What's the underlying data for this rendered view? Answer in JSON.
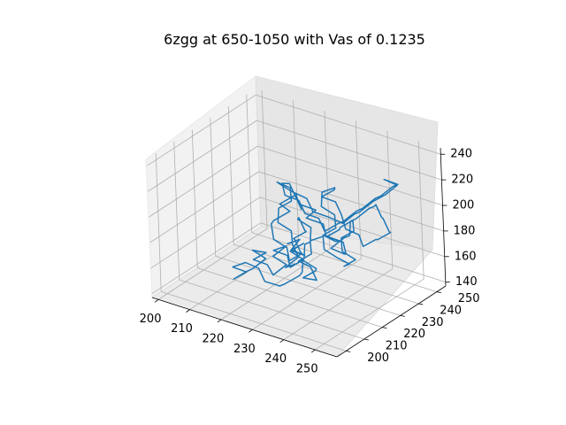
{
  "chart_data": {
    "type": "line",
    "projection": "3d",
    "title": "6zgg at 650-1050 with Vas of 0.1235",
    "xlabel": "",
    "ylabel": "",
    "zlabel": "",
    "xlim": [
      198,
      257
    ],
    "ylim": [
      195,
      255
    ],
    "zlim": [
      137,
      245
    ],
    "x_ticks": [
      "200",
      "210",
      "220",
      "230",
      "240",
      "250"
    ],
    "y_ticks": [
      "200",
      "210",
      "220",
      "230",
      "240",
      "250"
    ],
    "z_ticks": [
      "140",
      "160",
      "180",
      "200",
      "220",
      "240"
    ],
    "grid": true,
    "series": [
      {
        "color": "#1f77b4",
        "x": [
          226,
          229,
          228,
          231,
          229,
          232,
          230,
          233,
          231,
          229,
          227,
          230,
          228,
          231,
          229,
          226,
          224,
          227,
          225,
          228,
          226,
          223,
          221,
          224,
          222,
          225,
          228,
          231,
          234,
          237,
          240,
          242,
          240,
          243,
          241,
          238,
          240,
          237,
          235,
          238,
          236,
          239,
          241,
          244,
          246,
          243,
          245,
          242,
          240,
          243,
          241,
          238,
          236,
          233,
          235,
          232,
          230,
          233,
          231,
          228,
          226,
          229,
          227,
          224,
          226,
          229,
          232,
          235,
          238,
          241,
          244,
          247,
          249,
          246,
          248,
          245,
          247,
          244,
          242,
          239,
          241,
          238,
          236,
          239,
          242,
          240,
          237,
          235,
          232,
          234,
          231,
          229,
          226,
          228,
          225,
          223,
          226,
          229,
          232,
          235,
          237,
          234,
          236,
          239,
          241,
          238,
          240,
          243,
          245,
          242,
          244,
          241,
          239,
          236,
          238,
          235,
          233,
          230,
          228,
          231,
          229,
          226,
          224,
          227,
          230,
          233,
          236,
          239,
          241,
          244,
          246,
          249,
          251,
          248,
          250,
          247,
          245,
          242,
          240,
          237,
          235,
          232,
          230,
          227,
          225,
          222,
          220,
          218,
          221,
          224,
          227,
          230
        ],
        "y": [
          222,
          224,
          221,
          223,
          219,
          221,
          217,
          219,
          215,
          217,
          213,
          215,
          211,
          213,
          209,
          211,
          207,
          209,
          205,
          207,
          203,
          205,
          201,
          203,
          199,
          201,
          203,
          201,
          204,
          202,
          205,
          203,
          207,
          209,
          212,
          210,
          214,
          216,
          213,
          215,
          218,
          220,
          217,
          219,
          222,
          224,
          227,
          225,
          228,
          230,
          233,
          231,
          234,
          232,
          236,
          238,
          235,
          237,
          240,
          238,
          242,
          244,
          247,
          245,
          249,
          247,
          244,
          246,
          243,
          245,
          241,
          243,
          239,
          241,
          237,
          239,
          235,
          237,
          233,
          235,
          231,
          233,
          229,
          231,
          227,
          229,
          225,
          227,
          223,
          225,
          221,
          223,
          219,
          221,
          217,
          219,
          215,
          217,
          213,
          215,
          211,
          213,
          209,
          211,
          207,
          209,
          205,
          207,
          203,
          205,
          201,
          203,
          206,
          204,
          208,
          210,
          213,
          211,
          215,
          217,
          220,
          218,
          222,
          224,
          227,
          225,
          229,
          231,
          234,
          232,
          236,
          238,
          241,
          239,
          243,
          245,
          242,
          244,
          240,
          242,
          238,
          240,
          236,
          238,
          234,
          236,
          232,
          234,
          230,
          228,
          226,
          224
        ],
        "z": [
          176,
          180,
          174,
          170,
          176,
          182,
          178,
          172,
          168,
          174,
          180,
          184,
          178,
          172,
          166,
          170,
          176,
          182,
          186,
          180,
          174,
          168,
          164,
          170,
          176,
          180,
          176,
          170,
          166,
          172,
          178,
          184,
          188,
          182,
          176,
          170,
          166,
          172,
          178,
          184,
          190,
          194,
          188,
          182,
          176,
          170,
          174,
          180,
          186,
          192,
          196,
          190,
          184,
          178,
          172,
          168,
          174,
          180,
          186,
          192,
          198,
          202,
          196,
          190,
          184,
          178,
          172,
          168,
          164,
          170,
          176,
          182,
          188,
          194,
          200,
          206,
          210,
          204,
          198,
          192,
          186,
          180,
          174,
          170,
          176,
          182,
          188,
          194,
          200,
          206,
          212,
          216,
          210,
          204,
          198,
          192,
          186,
          180,
          176,
          182,
          188,
          194,
          200,
          206,
          212,
          218,
          222,
          216,
          210,
          204,
          198,
          192,
          186,
          182,
          188,
          194,
          200,
          206,
          212,
          218,
          224,
          228,
          222,
          216,
          210,
          204,
          198,
          194,
          200,
          206,
          212,
          218,
          224,
          228,
          222,
          216,
          210,
          204,
          198,
          192,
          186,
          180,
          176,
          182,
          188,
          194,
          200,
          206,
          212,
          216,
          210,
          204
        ]
      }
    ]
  }
}
